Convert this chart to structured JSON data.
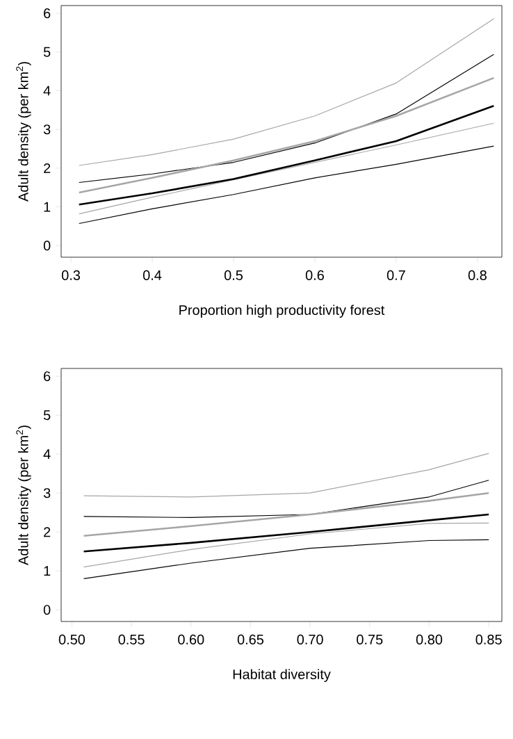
{
  "chart_data": [
    {
      "type": "line",
      "x": [
        0.31,
        0.4,
        0.5,
        0.6,
        0.7,
        0.82
      ],
      "xlim": [
        0.288,
        0.83
      ],
      "ylim": [
        -0.3,
        6.2
      ],
      "xticks": [
        0.3,
        0.4,
        0.5,
        0.6,
        0.7,
        0.8
      ],
      "yticks": [
        0,
        1,
        2,
        3,
        4,
        5,
        6
      ],
      "xlabel": "Proportion high productivity forest",
      "ylabel": "Adult density (per km$^{2}$)",
      "series": [
        {
          "color": "#000000",
          "values": [
            0.57,
            0.95,
            1.32,
            1.75,
            2.1,
            2.57
          ]
        },
        {
          "color": "#000000",
          "values": [
            1.63,
            1.85,
            2.15,
            2.65,
            3.4,
            4.94
          ]
        },
        {
          "color": "#a6a6a6",
          "values": [
            0.82,
            1.25,
            1.7,
            2.15,
            2.6,
            3.16
          ]
        },
        {
          "color": "#a6a6a6",
          "values": [
            2.07,
            2.35,
            2.75,
            3.35,
            4.2,
            5.86
          ]
        },
        {
          "color": "#000000",
          "values": [
            1.06,
            1.35,
            1.72,
            2.2,
            2.7,
            3.61
          ]
        },
        {
          "color": "#a6a6a6",
          "values": [
            1.37,
            1.75,
            2.2,
            2.7,
            3.35,
            4.33
          ]
        }
      ]
    },
    {
      "type": "line",
      "x": [
        0.51,
        0.6,
        0.7,
        0.8,
        0.85
      ],
      "xlim": [
        0.491,
        0.861
      ],
      "ylim": [
        -0.3,
        6.2
      ],
      "xticks": [
        {
          "value": 0.5,
          "label": "0.50"
        },
        0.55,
        {
          "value": 0.6,
          "label": "0.60"
        },
        0.65,
        {
          "value": 0.7,
          "label": "0.70"
        },
        0.75,
        {
          "value": 0.8,
          "label": "0.80"
        },
        0.85
      ],
      "yticks": [
        0,
        1,
        2,
        3,
        4,
        5,
        6
      ],
      "xlabel": "Habitat diversity",
      "ylabel": "Adult density (per km$^{2}$)",
      "series": [
        {
          "color": "#000000",
          "values": [
            0.8,
            1.2,
            1.58,
            1.78,
            1.8
          ]
        },
        {
          "color": "#000000",
          "values": [
            2.4,
            2.37,
            2.45,
            2.9,
            3.33
          ]
        },
        {
          "color": "#a6a6a6",
          "values": [
            1.1,
            1.55,
            1.95,
            2.22,
            2.23
          ]
        },
        {
          "color": "#a6a6a6",
          "values": [
            2.93,
            2.9,
            3.0,
            3.6,
            4.02
          ]
        },
        {
          "color": "#000000",
          "values": [
            1.5,
            1.72,
            2.0,
            2.3,
            2.45
          ]
        },
        {
          "color": "#a6a6a6",
          "values": [
            1.9,
            2.15,
            2.45,
            2.8,
            3.0
          ]
        }
      ]
    }
  ]
}
